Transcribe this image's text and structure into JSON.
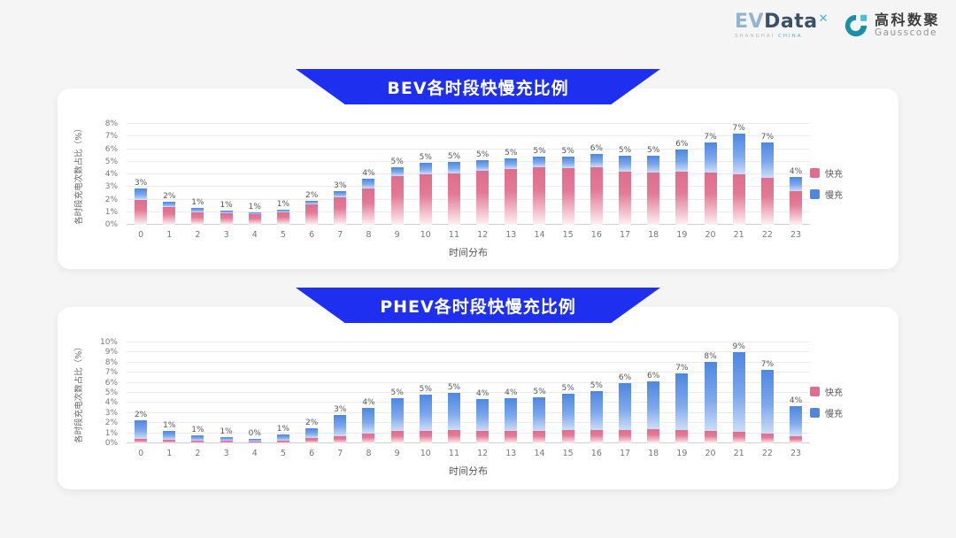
{
  "header": {
    "evdata": {
      "ev": "EV",
      "data": "Data",
      "x": "✕",
      "sub_left": "SHANGHAI",
      "sub_right": "CHINA"
    },
    "gausscode": {
      "cn": "高科数聚",
      "en": "Gausscode"
    }
  },
  "colors": {
    "banner_blue": "#1e2ff0",
    "fast_pink": "#df6d8d",
    "slow_blue": "#4d87e0",
    "panel_bg": "#ffffff",
    "page_bg": "#f5f5f6"
  },
  "chart_data": [
    {
      "id": "bev",
      "type": "bar",
      "stacked": true,
      "title": "BEV各时段快慢充比例",
      "xlabel": "时间分布",
      "ylabel": "各时段充电次数占比（%）",
      "ylim": [
        0,
        8
      ],
      "ytick_step": 1,
      "ytick_suffix": "%",
      "grid": true,
      "legend_position": "right",
      "categories": [
        "0",
        "1",
        "2",
        "3",
        "4",
        "5",
        "6",
        "7",
        "8",
        "9",
        "10",
        "11",
        "12",
        "13",
        "14",
        "15",
        "16",
        "17",
        "18",
        "19",
        "20",
        "21",
        "22",
        "23"
      ],
      "series": [
        {
          "name": "快充",
          "color": "#df6d8d",
          "values": [
            1.95,
            1.4,
            1.0,
            0.88,
            0.85,
            1.0,
            1.6,
            2.2,
            2.9,
            3.85,
            4.0,
            4.1,
            4.3,
            4.4,
            4.55,
            4.5,
            4.55,
            4.2,
            4.15,
            4.2,
            4.15,
            4.0,
            3.7,
            2.65
          ]
        },
        {
          "name": "慢充",
          "color": "#4d87e0",
          "values": [
            0.95,
            0.4,
            0.3,
            0.22,
            0.12,
            0.18,
            0.32,
            0.5,
            0.72,
            0.7,
            0.9,
            0.9,
            0.85,
            0.85,
            0.85,
            0.9,
            1.05,
            1.25,
            1.3,
            1.75,
            2.35,
            3.2,
            2.85,
            1.15
          ]
        }
      ],
      "bar_labels": [
        "3%",
        "2%",
        "1%",
        "1%",
        "1%",
        "1%",
        "2%",
        "3%",
        "4%",
        "5%",
        "5%",
        "5%",
        "5%",
        "5%",
        "5%",
        "5%",
        "6%",
        "5%",
        "5%",
        "6%",
        "7%",
        "7%",
        "7%",
        "4%"
      ]
    },
    {
      "id": "phev",
      "type": "bar",
      "stacked": true,
      "title": "PHEV各时段快慢充比例",
      "xlabel": "时间分布",
      "ylabel": "各时段充电次数占比（%）",
      "ylim": [
        0,
        10
      ],
      "ytick_step": 1,
      "ytick_suffix": "%",
      "grid": true,
      "legend_position": "right",
      "categories": [
        "0",
        "1",
        "2",
        "3",
        "4",
        "5",
        "6",
        "7",
        "8",
        "9",
        "10",
        "11",
        "12",
        "13",
        "14",
        "15",
        "16",
        "17",
        "18",
        "19",
        "20",
        "21",
        "22",
        "23"
      ],
      "series": [
        {
          "name": "快充",
          "color": "#df6d8d",
          "values": [
            0.45,
            0.35,
            0.3,
            0.25,
            0.2,
            0.3,
            0.55,
            0.7,
            0.95,
            1.2,
            1.25,
            1.3,
            1.2,
            1.25,
            1.25,
            1.35,
            1.35,
            1.3,
            1.4,
            1.35,
            1.25,
            1.15,
            0.95,
            0.7
          ]
        },
        {
          "name": "慢充",
          "color": "#4d87e0",
          "values": [
            1.8,
            0.85,
            0.5,
            0.35,
            0.25,
            0.55,
            0.95,
            2.1,
            2.6,
            3.3,
            3.55,
            3.7,
            3.2,
            3.25,
            3.35,
            3.55,
            3.85,
            4.7,
            4.7,
            5.55,
            6.85,
            7.95,
            6.35,
            2.95
          ]
        }
      ],
      "bar_labels": [
        "2%",
        "1%",
        "1%",
        "1%",
        "0%",
        "1%",
        "2%",
        "3%",
        "4%",
        "5%",
        "5%",
        "5%",
        "4%",
        "4%",
        "5%",
        "5%",
        "5%",
        "6%",
        "6%",
        "7%",
        "8%",
        "9%",
        "7%",
        "4%"
      ]
    }
  ]
}
